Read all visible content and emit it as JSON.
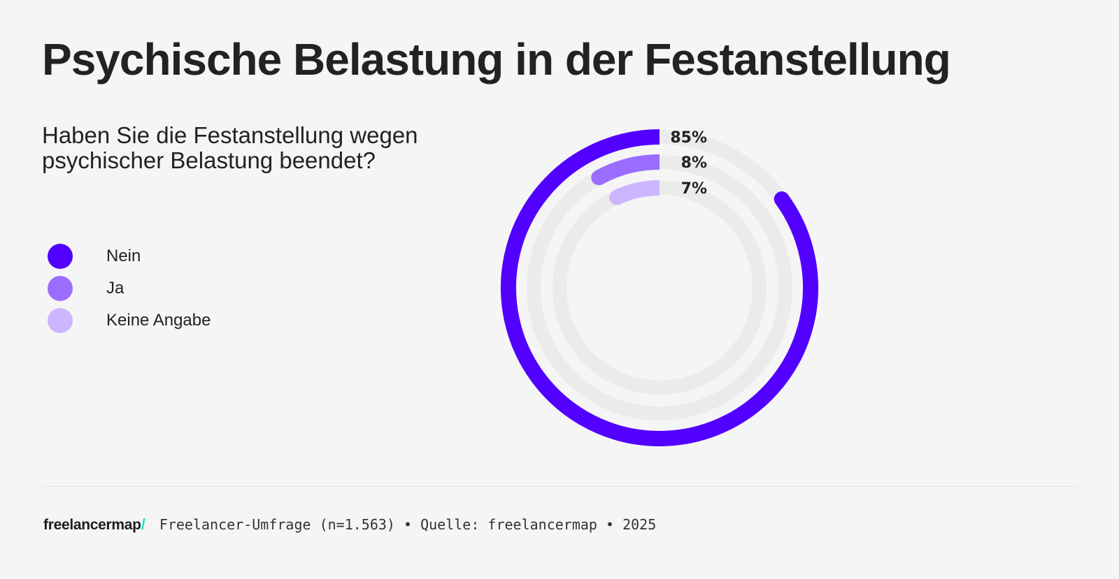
{
  "title": "Psychische Belastung in der Festanstellung",
  "question": "Haben Sie die Festanstellung wegen psychischer Belastung beendet?",
  "colors": {
    "background": "#f5f5f5",
    "track": "#ebebeb",
    "text": "#222222",
    "brand_accent": "#1ee3c4"
  },
  "footer": {
    "brand": "freelancermap",
    "brand_slash": "/",
    "source_text": "Freelancer-Umfrage (n=1.563) • Quelle: freelancermap • 2025"
  },
  "chart_data": {
    "type": "radial-bar",
    "title": "Psychische Belastung in der Festanstellung",
    "subtitle": "Haben Sie die Festanstellung wegen psychischer Belastung beendet?",
    "legend_position": "left",
    "unit": "%",
    "max": 100,
    "series": [
      {
        "name": "Nein",
        "value": 85,
        "label": "85%",
        "color": "#5200ff"
      },
      {
        "name": "Ja",
        "value": 8,
        "label": "8%",
        "color": "#9b6dff"
      },
      {
        "name": "Keine Angabe",
        "value": 7,
        "label": "7%",
        "color": "#cbb6ff"
      }
    ]
  }
}
